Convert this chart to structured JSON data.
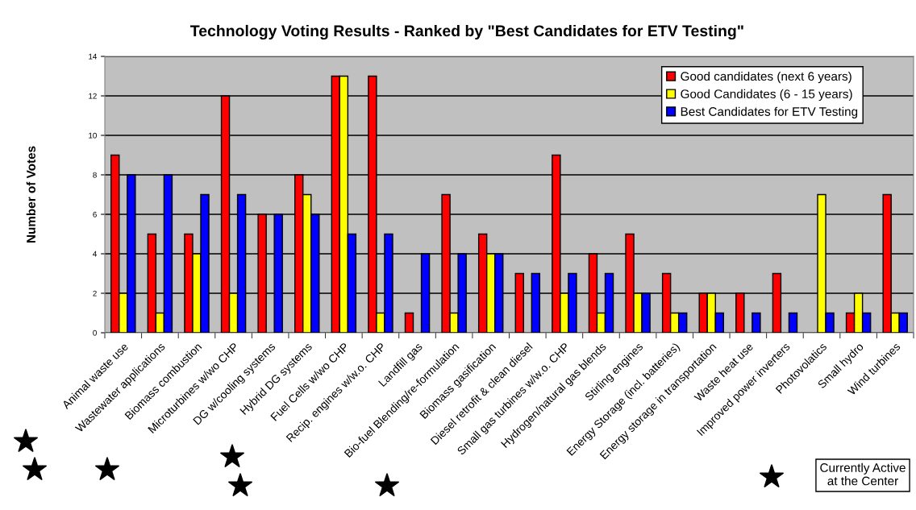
{
  "chart_data": {
    "type": "bar",
    "title": "Technology Voting Results - Ranked by \"Best Candidates for ETV Testing\"",
    "ylabel": "Number of Votes",
    "categories": [
      "Animal waste use",
      "Wastewater applications",
      "Biomass combustion",
      "Microturbines w/wo CHP",
      "DG w/cooling systems",
      "Hybrid DG systems",
      "Fuel Cells w/wo CHP",
      "Recip. engines w/w.o. CHP",
      "Landfill gas",
      "Bio-fuel Blending/re-formulation",
      "Biomass gasification",
      "Diesel retrofit & clean diesel",
      "Small gas turbines w/w.o. CHP",
      "Hydrogen/natural gas blends",
      "Stirling engines",
      "Energy Storage (incl. batteries)",
      "Energy storage in transportation",
      "Waste heat use",
      "Improved power inverters",
      "Photovolatics",
      "Small hydro",
      "Wind turbines"
    ],
    "series": [
      {
        "name": "Good candidates (next 6 years)",
        "color": "#ff0000",
        "values": [
          9,
          5,
          5,
          12,
          6,
          8,
          13,
          13,
          1,
          7,
          5,
          3,
          9,
          4,
          5,
          3,
          2,
          2,
          3,
          0,
          1,
          7
        ]
      },
      {
        "name": "Good Candidates (6 - 15 years)",
        "color": "#ffff00",
        "values": [
          2,
          1,
          4,
          2,
          0,
          7,
          13,
          1,
          0,
          1,
          4,
          0,
          2,
          1,
          2,
          1,
          2,
          0,
          0,
          7,
          2,
          1
        ]
      },
      {
        "name": "Best Candidates for ETV Testing",
        "color": "#0000ff",
        "values": [
          8,
          8,
          7,
          7,
          6,
          6,
          5,
          5,
          4,
          4,
          4,
          3,
          3,
          3,
          2,
          1,
          1,
          1,
          1,
          1,
          1,
          1
        ]
      }
    ],
    "ylim": [
      0,
      14
    ],
    "yticks": [
      0,
      2,
      4,
      6,
      8,
      10,
      12,
      14
    ],
    "grid": "y",
    "legend": "top right",
    "annotations": [
      "Currently Active\nat the Center"
    ]
  }
}
